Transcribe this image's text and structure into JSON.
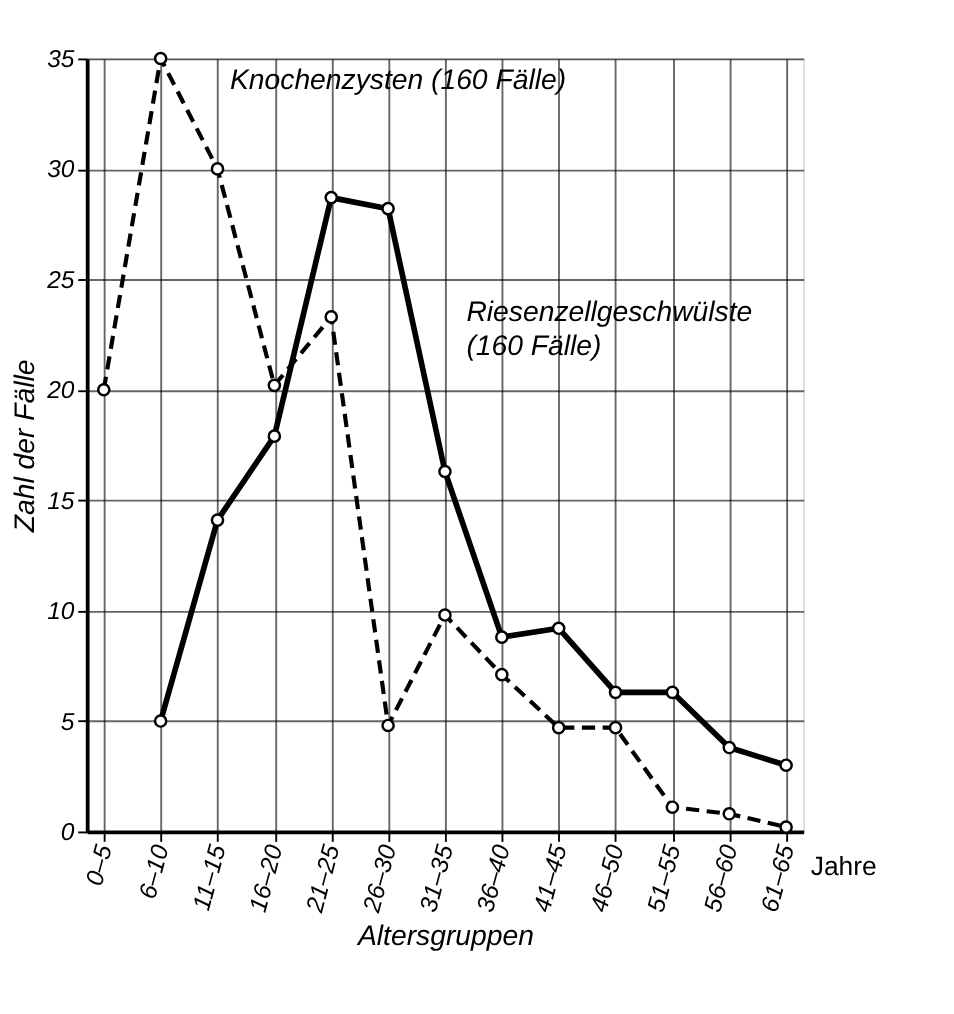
{
  "chart_data": {
    "type": "line",
    "xlabel": "Altersgruppen",
    "ylabel": "Zahl der Fälle",
    "categories": [
      "0–5",
      "6–10",
      "11–15",
      "16–20",
      "21–25",
      "26–30",
      "31–35",
      "36–40",
      "41–45",
      "46–50",
      "51–55",
      "56–60",
      "61–65"
    ],
    "ylim": [
      0,
      35
    ],
    "yticks": [
      0,
      5,
      10,
      15,
      20,
      25,
      30,
      35
    ],
    "grid": true,
    "marker": "circle",
    "annotations": [
      "Jahre"
    ],
    "series": [
      {
        "name": "Knochenzysten (160 Fälle)",
        "color": "#000000",
        "line_style": "dashed",
        "values": [
          20,
          35,
          30,
          20.2,
          23.3,
          4.8,
          9.8,
          7.1,
          4.7,
          4.7,
          1.1,
          0.8,
          0.2
        ]
      },
      {
        "name": "Riesenzellgeschwülste (160 Fälle)",
        "color": "#000000",
        "line_style": "solid",
        "values": [
          null,
          5,
          14.1,
          17.9,
          28.7,
          28.2,
          16.3,
          8.8,
          9.2,
          6.3,
          6.3,
          3.8,
          3.0
        ]
      }
    ]
  }
}
